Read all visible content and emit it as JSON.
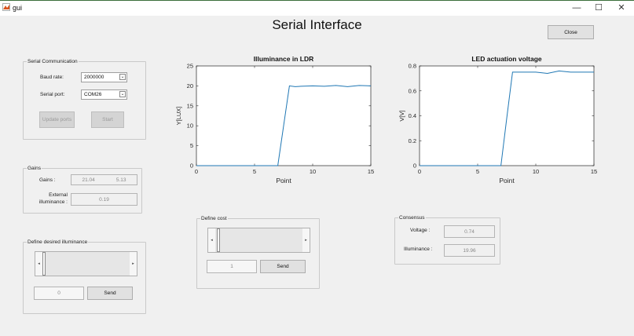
{
  "window": {
    "title": "gui",
    "min": "—",
    "max": "☐",
    "close": "✕"
  },
  "app_title": "Serial Interface",
  "close_button": "Close",
  "serial": {
    "title": "Serial Communication",
    "baud_label": "Baud rate:",
    "baud_value": "2000000",
    "port_label": "Serial port:",
    "port_value": "COM26",
    "update_ports": "Update ports",
    "start": "Start"
  },
  "gains": {
    "title": "Gains",
    "gains_label": "Gains :",
    "gain1": "21.04",
    "gain2": "5.13",
    "ext_label_1": "External",
    "ext_label_2": "illuminance :",
    "ext_value": "0.19"
  },
  "desired": {
    "title": "Define desired illuminance",
    "value": "0",
    "level": 0,
    "send": "Send",
    "left_arrow": "◂",
    "right_arrow": "▸"
  },
  "cost": {
    "title": "Define cost",
    "value": "1",
    "level": 0,
    "send": "Send",
    "left_arrow": "◂",
    "right_arrow": "▸"
  },
  "consensus": {
    "title": "Consensus",
    "voltage_label": "Voltage :",
    "voltage_value": "0.74",
    "illum_label": "Illuminance :",
    "illum_value": "19.96"
  },
  "chart_data": [
    {
      "type": "line",
      "title": "Illuminance in LDR",
      "xlabel": "Point",
      "ylabel": "Y[LUX]",
      "xlim": [
        0,
        15
      ],
      "ylim": [
        0,
        25
      ],
      "xticks": [
        0,
        5,
        10,
        15
      ],
      "yticks": [
        0,
        5,
        10,
        15,
        20,
        25
      ],
      "color": "#1f77b4",
      "x": [
        0,
        1,
        2,
        3,
        4,
        5,
        6,
        7,
        7.5,
        8,
        8.5,
        9,
        10,
        11,
        12,
        13,
        14,
        15
      ],
      "y": [
        0,
        0,
        0,
        0,
        0,
        0,
        0,
        0,
        10,
        20,
        19.8,
        19.9,
        20,
        19.9,
        20.1,
        19.8,
        20.1,
        20
      ]
    },
    {
      "type": "line",
      "title": "LED actuation voltage",
      "xlabel": "Point",
      "ylabel": "V[V]",
      "xlim": [
        0,
        15
      ],
      "ylim": [
        0,
        0.8
      ],
      "xticks": [
        0,
        5,
        10,
        15
      ],
      "yticks": [
        0,
        0.2,
        0.4,
        0.6,
        0.8
      ],
      "color": "#1f77b4",
      "x": [
        0,
        1,
        2,
        3,
        4,
        5,
        6,
        7,
        7.5,
        8,
        9,
        10,
        11,
        12,
        13,
        14,
        15
      ],
      "y": [
        0,
        0,
        0,
        0,
        0,
        0,
        0,
        0,
        0.38,
        0.75,
        0.75,
        0.75,
        0.74,
        0.76,
        0.75,
        0.75,
        0.75
      ]
    }
  ]
}
